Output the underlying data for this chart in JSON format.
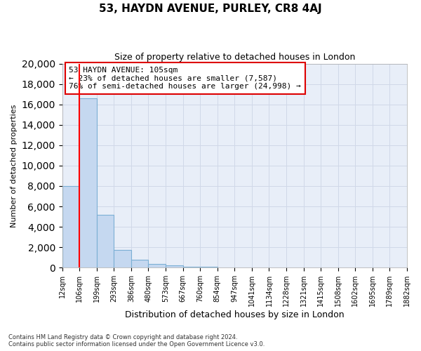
{
  "title": "53, HAYDN AVENUE, PURLEY, CR8 4AJ",
  "subtitle": "Size of property relative to detached houses in London",
  "xlabel": "Distribution of detached houses by size in London",
  "ylabel": "Number of detached properties",
  "annotation_line1": "53 HAYDN AVENUE: 105sqm",
  "annotation_line2": "← 23% of detached houses are smaller (7,587)",
  "annotation_line3": "76% of semi-detached houses are larger (24,998) →",
  "bin_labels": [
    "12sqm",
    "106sqm",
    "199sqm",
    "293sqm",
    "386sqm",
    "480sqm",
    "573sqm",
    "667sqm",
    "760sqm",
    "854sqm",
    "947sqm",
    "1041sqm",
    "1134sqm",
    "1228sqm",
    "1321sqm",
    "1415sqm",
    "1508sqm",
    "1602sqm",
    "1695sqm",
    "1789sqm",
    "1882sqm"
  ],
  "bar_heights": [
    8000,
    16600,
    5200,
    1750,
    800,
    350,
    200,
    100,
    100,
    0,
    0,
    0,
    0,
    0,
    0,
    0,
    0,
    0,
    0,
    0
  ],
  "bar_color": "#c5d8f0",
  "bar_edgecolor": "#7bafd4",
  "red_line_bin_index": 1,
  "red_line_color": "#ff0000",
  "ylim": [
    0,
    20000
  ],
  "yticks": [
    0,
    2000,
    4000,
    6000,
    8000,
    10000,
    12000,
    14000,
    16000,
    18000,
    20000
  ],
  "grid_color": "#d0d8e8",
  "background_color": "#e8eef8",
  "footer_line1": "Contains HM Land Registry data © Crown copyright and database right 2024.",
  "footer_line2": "Contains public sector information licensed under the Open Government Licence v3.0.",
  "annotation_box_color": "#ffffff",
  "annotation_border_color": "#dd0000",
  "title_fontsize": 11,
  "subtitle_fontsize": 9,
  "ylabel_fontsize": 8,
  "xlabel_fontsize": 9,
  "tick_fontsize": 7,
  "footer_fontsize": 6
}
